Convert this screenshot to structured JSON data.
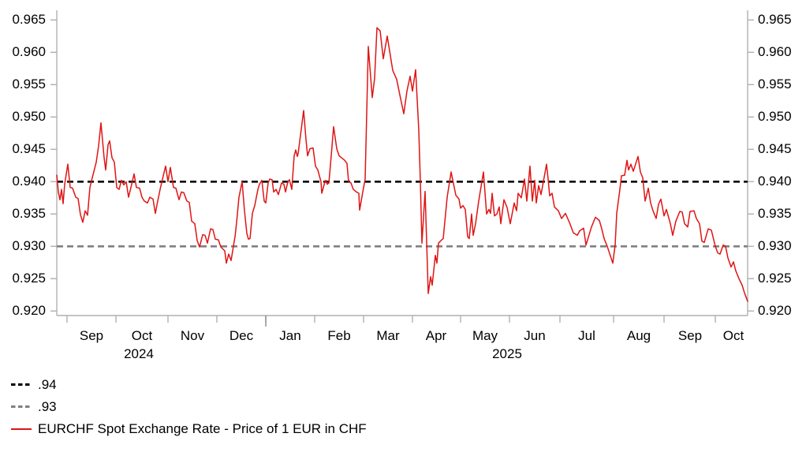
{
  "page": {
    "background": "#ffffff"
  },
  "colors": {
    "axis": "#b0b0b0",
    "year_tick": "#8a8a8a",
    "text": "#000000",
    "series": "#e01414",
    "ref94": "#000000",
    "ref93": "#808080"
  },
  "legend": {
    "items": [
      {
        "label": ".94",
        "swatch": "dashed",
        "color": "#000000"
      },
      {
        "label": ".93",
        "swatch": "dashed",
        "color": "#808080"
      },
      {
        "label": "EURCHF Spot Exchange Rate - Price of 1 EUR in CHF",
        "swatch": "solid",
        "color": "#e01414"
      }
    ]
  },
  "chart_data": {
    "type": "line",
    "title": "EURCHF Spot Exchange Rate - Price of 1 EUR in CHF",
    "grid": false,
    "legend_position": "bottom-left",
    "y_axis": {
      "sides": [
        "left",
        "right"
      ],
      "ylim": [
        0.9193,
        0.9665
      ],
      "ticks": [
        0.92,
        0.925,
        0.93,
        0.935,
        0.94,
        0.945,
        0.95,
        0.955,
        0.96,
        0.965
      ]
    },
    "x_axis": {
      "unit": "plot_px_offset (~2.06 px per day, Aug 2024 - Oct 2025)",
      "max_offset": 876,
      "month_tick_offsets": [
        13,
        75,
        141,
        203,
        265,
        327,
        389,
        451,
        512,
        574,
        638,
        706,
        770,
        835
      ],
      "year_tick_offsets": [
        265
      ],
      "month_labels": [
        {
          "text": "Sep",
          "offset": 44
        },
        {
          "text": "Oct",
          "offset": 108
        },
        {
          "text": "Nov",
          "offset": 172
        },
        {
          "text": "Dec",
          "offset": 234
        },
        {
          "text": "Jan",
          "offset": 296
        },
        {
          "text": "Feb",
          "offset": 358
        },
        {
          "text": "Mar",
          "offset": 420
        },
        {
          "text": "Apr",
          "offset": 481
        },
        {
          "text": "May",
          "offset": 543
        },
        {
          "text": "Jun",
          "offset": 606
        },
        {
          "text": "Jul",
          "offset": 672
        },
        {
          "text": "Aug",
          "offset": 738
        },
        {
          "text": "Sep",
          "offset": 803
        },
        {
          "text": "Oct",
          "offset": 858
        }
      ],
      "year_labels": [
        {
          "text": "2024",
          "offset": 104
        },
        {
          "text": "2025",
          "offset": 571
        }
      ]
    },
    "ref_lines": [
      {
        "label": ".94",
        "value": 0.94,
        "color": "#000000",
        "style": "dashed"
      },
      {
        "label": ".93",
        "value": 0.93,
        "color": "#808080",
        "style": "dashed"
      }
    ],
    "series": [
      {
        "name": "EURCHF Spot Exchange Rate - Price of 1 EUR in CHF",
        "color": "#e01414",
        "points": [
          [
            0,
            0.941
          ],
          [
            2,
            0.9384
          ],
          [
            4,
            0.9372
          ],
          [
            6,
            0.9388
          ],
          [
            8,
            0.9366
          ],
          [
            10,
            0.9396
          ],
          [
            14,
            0.9427
          ],
          [
            17,
            0.9391
          ],
          [
            20,
            0.939
          ],
          [
            24,
            0.9376
          ],
          [
            27,
            0.9374
          ],
          [
            30,
            0.9349
          ],
          [
            33,
            0.9337
          ],
          [
            36,
            0.9355
          ],
          [
            39,
            0.9348
          ],
          [
            42,
            0.9391
          ],
          [
            45,
            0.9406
          ],
          [
            50,
            0.943
          ],
          [
            53,
            0.9455
          ],
          [
            56,
            0.9491
          ],
          [
            60,
            0.9437
          ],
          [
            62,
            0.9418
          ],
          [
            65,
            0.9457
          ],
          [
            67,
            0.9463
          ],
          [
            70,
            0.9437
          ],
          [
            73,
            0.943
          ],
          [
            76,
            0.9391
          ],
          [
            79,
            0.9388
          ],
          [
            82,
            0.9402
          ],
          [
            85,
            0.9395
          ],
          [
            88,
            0.94
          ],
          [
            91,
            0.9376
          ],
          [
            95,
            0.9396
          ],
          [
            98,
            0.9412
          ],
          [
            101,
            0.9391
          ],
          [
            105,
            0.939
          ],
          [
            108,
            0.9376
          ],
          [
            111,
            0.937
          ],
          [
            115,
            0.9367
          ],
          [
            118,
            0.9376
          ],
          [
            122,
            0.9373
          ],
          [
            125,
            0.9351
          ],
          [
            128,
            0.937
          ],
          [
            131,
            0.9388
          ],
          [
            135,
            0.9409
          ],
          [
            138,
            0.9424
          ],
          [
            141,
            0.94
          ],
          [
            144,
            0.9422
          ],
          [
            148,
            0.9391
          ],
          [
            151,
            0.939
          ],
          [
            155,
            0.9372
          ],
          [
            158,
            0.9384
          ],
          [
            161,
            0.9383
          ],
          [
            165,
            0.937
          ],
          [
            168,
            0.9368
          ],
          [
            171,
            0.9339
          ],
          [
            175,
            0.9335
          ],
          [
            178,
            0.9309
          ],
          [
            181,
            0.9299
          ],
          [
            185,
            0.9318
          ],
          [
            188,
            0.9317
          ],
          [
            191,
            0.9305
          ],
          [
            195,
            0.9327
          ],
          [
            198,
            0.9326
          ],
          [
            201,
            0.9311
          ],
          [
            205,
            0.931
          ],
          [
            208,
            0.9299
          ],
          [
            213,
            0.9293
          ],
          [
            215,
            0.9274
          ],
          [
            218,
            0.9288
          ],
          [
            221,
            0.9278
          ],
          [
            226,
            0.9315
          ],
          [
            228,
            0.9337
          ],
          [
            231,
            0.9376
          ],
          [
            235,
            0.94
          ],
          [
            238,
            0.9355
          ],
          [
            241,
            0.932
          ],
          [
            243,
            0.9311
          ],
          [
            245,
            0.9312
          ],
          [
            248,
            0.9351
          ],
          [
            251,
            0.9363
          ],
          [
            255,
            0.9388
          ],
          [
            257,
            0.9396
          ],
          [
            260,
            0.9402
          ],
          [
            263,
            0.937
          ],
          [
            265,
            0.9367
          ],
          [
            268,
            0.9398
          ],
          [
            270,
            0.9404
          ],
          [
            273,
            0.9403
          ],
          [
            275,
            0.9384
          ],
          [
            278,
            0.9388
          ],
          [
            281,
            0.938
          ],
          [
            285,
            0.9398
          ],
          [
            288,
            0.9396
          ],
          [
            290,
            0.9384
          ],
          [
            293,
            0.94
          ],
          [
            295,
            0.9403
          ],
          [
            298,
            0.9388
          ],
          [
            301,
            0.944
          ],
          [
            303,
            0.9449
          ],
          [
            305,
            0.9439
          ],
          [
            306,
            0.9443
          ],
          [
            313,
            0.951
          ],
          [
            316,
            0.9465
          ],
          [
            318,
            0.944
          ],
          [
            321,
            0.9451
          ],
          [
            325,
            0.9452
          ],
          [
            328,
            0.9424
          ],
          [
            331,
            0.9418
          ],
          [
            335,
            0.94
          ],
          [
            336,
            0.9382
          ],
          [
            340,
            0.94
          ],
          [
            341,
            0.9402
          ],
          [
            343,
            0.9396
          ],
          [
            345,
            0.9398
          ],
          [
            348,
            0.944
          ],
          [
            351,
            0.9485
          ],
          [
            355,
            0.9451
          ],
          [
            358,
            0.944
          ],
          [
            361,
            0.9437
          ],
          [
            365,
            0.9433
          ],
          [
            368,
            0.9428
          ],
          [
            370,
            0.94
          ],
          [
            373,
            0.9398
          ],
          [
            376,
            0.9388
          ],
          [
            380,
            0.9384
          ],
          [
            383,
            0.9382
          ],
          [
            384,
            0.9356
          ],
          [
            388,
            0.9384
          ],
          [
            391,
            0.9404
          ],
          [
            395,
            0.9609
          ],
          [
            400,
            0.953
          ],
          [
            403,
            0.956
          ],
          [
            406,
            0.9638
          ],
          [
            410,
            0.9633
          ],
          [
            414,
            0.959
          ],
          [
            419,
            0.9625
          ],
          [
            426,
            0.9572
          ],
          [
            431,
            0.9558
          ],
          [
            436,
            0.9528
          ],
          [
            440,
            0.9505
          ],
          [
            444,
            0.954
          ],
          [
            448,
            0.9563
          ],
          [
            451,
            0.954
          ],
          [
            455,
            0.9573
          ],
          [
            459,
            0.948
          ],
          [
            461,
            0.94
          ],
          [
            463,
            0.9305
          ],
          [
            467,
            0.9385
          ],
          [
            471,
            0.9227
          ],
          [
            474,
            0.9253
          ],
          [
            476,
            0.924
          ],
          [
            480,
            0.9286
          ],
          [
            482,
            0.9274
          ],
          [
            484,
            0.9305
          ],
          [
            488,
            0.931
          ],
          [
            490,
            0.9312
          ],
          [
            495,
            0.9376
          ],
          [
            500,
            0.9415
          ],
          [
            506,
            0.9379
          ],
          [
            510,
            0.9373
          ],
          [
            512,
            0.9359
          ],
          [
            515,
            0.9363
          ],
          [
            518,
            0.9357
          ],
          [
            521,
            0.9315
          ],
          [
            523,
            0.9312
          ],
          [
            526,
            0.935
          ],
          [
            528,
            0.9317
          ],
          [
            531,
            0.9335
          ],
          [
            535,
            0.937
          ],
          [
            541,
            0.9415
          ],
          [
            545,
            0.935
          ],
          [
            548,
            0.9357
          ],
          [
            550,
            0.9351
          ],
          [
            552,
            0.9382
          ],
          [
            555,
            0.9347
          ],
          [
            558,
            0.935
          ],
          [
            561,
            0.9361
          ],
          [
            563,
            0.9335
          ],
          [
            567,
            0.9372
          ],
          [
            571,
            0.936
          ],
          [
            575,
            0.9335
          ],
          [
            580,
            0.9367
          ],
          [
            583,
            0.9355
          ],
          [
            585,
            0.9382
          ],
          [
            589,
            0.9375
          ],
          [
            593,
            0.9404
          ],
          [
            596,
            0.937
          ],
          [
            600,
            0.9424
          ],
          [
            603,
            0.937
          ],
          [
            606,
            0.9402
          ],
          [
            608,
            0.9367
          ],
          [
            611,
            0.9394
          ],
          [
            614,
            0.938
          ],
          [
            621,
            0.9427
          ],
          [
            623,
            0.9404
          ],
          [
            625,
            0.9378
          ],
          [
            628,
            0.9382
          ],
          [
            631,
            0.9361
          ],
          [
            636,
            0.9355
          ],
          [
            640,
            0.9343
          ],
          [
            645,
            0.9351
          ],
          [
            650,
            0.9337
          ],
          [
            655,
            0.9321
          ],
          [
            660,
            0.9317
          ],
          [
            663,
            0.9324
          ],
          [
            668,
            0.9328
          ],
          [
            671,
            0.9302
          ],
          [
            678,
            0.933
          ],
          [
            683,
            0.9345
          ],
          [
            688,
            0.934
          ],
          [
            691,
            0.9327
          ],
          [
            694,
            0.9312
          ],
          [
            698,
            0.93
          ],
          [
            705,
            0.9274
          ],
          [
            708,
            0.9302
          ],
          [
            710,
            0.9351
          ],
          [
            714,
            0.9388
          ],
          [
            716,
            0.9409
          ],
          [
            720,
            0.941
          ],
          [
            723,
            0.9433
          ],
          [
            725,
            0.9418
          ],
          [
            728,
            0.9427
          ],
          [
            731,
            0.9416
          ],
          [
            737,
            0.9439
          ],
          [
            740,
            0.9415
          ],
          [
            743,
            0.9406
          ],
          [
            746,
            0.937
          ],
          [
            750,
            0.939
          ],
          [
            753,
            0.9367
          ],
          [
            756,
            0.9355
          ],
          [
            760,
            0.9343
          ],
          [
            763,
            0.9365
          ],
          [
            766,
            0.9373
          ],
          [
            770,
            0.9347
          ],
          [
            773,
            0.9357
          ],
          [
            778,
            0.9335
          ],
          [
            781,
            0.9317
          ],
          [
            785,
            0.9339
          ],
          [
            790,
            0.9354
          ],
          [
            793,
            0.9353
          ],
          [
            796,
            0.9335
          ],
          [
            800,
            0.933
          ],
          [
            803,
            0.9354
          ],
          [
            808,
            0.9355
          ],
          [
            811,
            0.9343
          ],
          [
            815,
            0.9335
          ],
          [
            818,
            0.9308
          ],
          [
            821,
            0.9306
          ],
          [
            826,
            0.9327
          ],
          [
            830,
            0.9325
          ],
          [
            835,
            0.93
          ],
          [
            838,
            0.929
          ],
          [
            841,
            0.9288
          ],
          [
            845,
            0.9302
          ],
          [
            848,
            0.93
          ],
          [
            851,
            0.9282
          ],
          [
            855,
            0.9268
          ],
          [
            858,
            0.9276
          ],
          [
            861,
            0.9262
          ],
          [
            865,
            0.925
          ],
          [
            869,
            0.924
          ],
          [
            872,
            0.9228
          ],
          [
            876,
            0.9215
          ]
        ]
      }
    ]
  }
}
